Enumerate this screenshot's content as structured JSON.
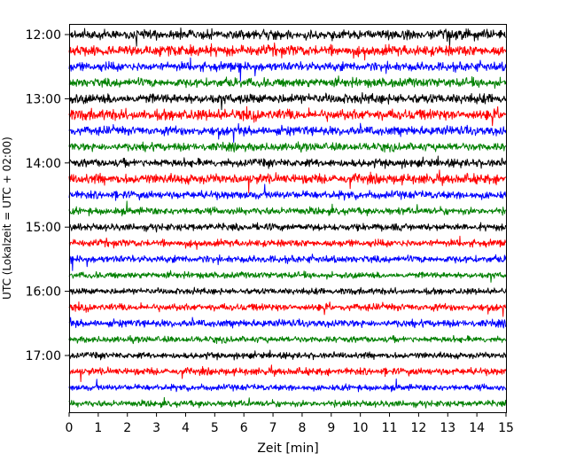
{
  "chart_data": {
    "type": "line",
    "subtype": "helicorder",
    "xlabel": "Zeit  [min]",
    "ylabel": "UTC (Lokalzeit = UTC + 02:00)",
    "xlim": [
      0,
      15
    ],
    "x_ticks": [
      "0",
      "1",
      "2",
      "3",
      "4",
      "5",
      "6",
      "7",
      "8",
      "9",
      "10",
      "11",
      "12",
      "13",
      "14",
      "15"
    ],
    "y_ticks": [
      "12:00",
      "13:00",
      "14:00",
      "15:00",
      "16:00",
      "17:00"
    ],
    "trace_interval_min": 15,
    "color_cycle": [
      "#000000",
      "#ff0000",
      "#0000ff",
      "#008000"
    ],
    "traces": [
      {
        "start": "12:00",
        "color": "#000000",
        "amp": 0.55
      },
      {
        "start": "12:15",
        "color": "#ff0000",
        "amp": 0.6
      },
      {
        "start": "12:30",
        "color": "#0000ff",
        "amp": 0.5
      },
      {
        "start": "12:45",
        "color": "#008000",
        "amp": 0.5
      },
      {
        "start": "13:00",
        "color": "#000000",
        "amp": 0.55
      },
      {
        "start": "13:15",
        "color": "#ff0000",
        "amp": 0.6
      },
      {
        "start": "13:30",
        "color": "#0000ff",
        "amp": 0.5
      },
      {
        "start": "13:45",
        "color": "#008000",
        "amp": 0.45
      },
      {
        "start": "14:00",
        "color": "#000000",
        "amp": 0.45
      },
      {
        "start": "14:15",
        "color": "#ff0000",
        "amp": 0.55
      },
      {
        "start": "14:30",
        "color": "#0000ff",
        "amp": 0.45
      },
      {
        "start": "14:45",
        "color": "#008000",
        "amp": 0.4
      },
      {
        "start": "15:00",
        "color": "#000000",
        "amp": 0.4
      },
      {
        "start": "15:15",
        "color": "#ff0000",
        "amp": 0.4
      },
      {
        "start": "15:30",
        "color": "#0000ff",
        "amp": 0.4
      },
      {
        "start": "15:45",
        "color": "#008000",
        "amp": 0.35
      },
      {
        "start": "16:00",
        "color": "#000000",
        "amp": 0.35
      },
      {
        "start": "16:15",
        "color": "#ff0000",
        "amp": 0.4
      },
      {
        "start": "16:30",
        "color": "#0000ff",
        "amp": 0.4
      },
      {
        "start": "16:45",
        "color": "#008000",
        "amp": 0.35
      },
      {
        "start": "17:00",
        "color": "#000000",
        "amp": 0.35
      },
      {
        "start": "17:15",
        "color": "#ff0000",
        "amp": 0.4
      },
      {
        "start": "17:30",
        "color": "#0000ff",
        "amp": 0.35
      },
      {
        "start": "17:45",
        "color": "#008000",
        "amp": 0.35
      }
    ],
    "grid": false,
    "legend": "none"
  }
}
